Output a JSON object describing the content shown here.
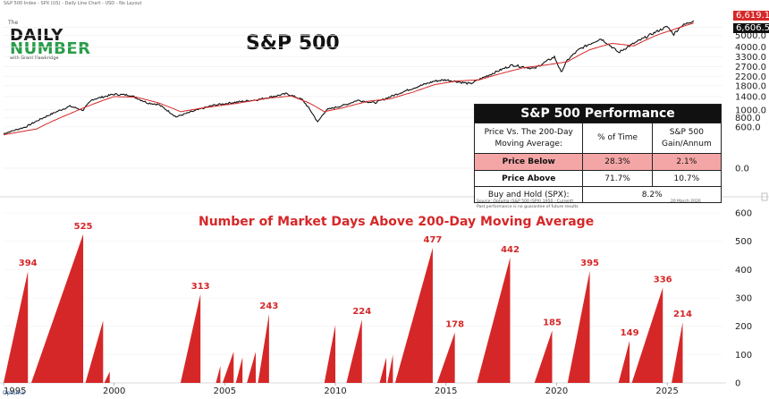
{
  "header": {
    "caption": "S&P 500 Index - SPX (US) - Daily Line Chart - USD - No Layout"
  },
  "logo": {
    "the": "The",
    "daily": "DAILY",
    "number": "NUMBER",
    "sub": "with Grant Hawkridge"
  },
  "chart_data": [
    {
      "type": "line",
      "title": "S&P 500",
      "y_scale": "log",
      "ylim": [
        -100,
        6700
      ],
      "ytick_labels": [
        "6,619.1",
        "6,606.5",
        "5800.0",
        "5000.0",
        "4000.0",
        "3300.0",
        "2700.0",
        "2200.0",
        "1800.0",
        "1400.0",
        "1000.0",
        "800.0",
        "600.0",
        "0.0"
      ],
      "last_value_tags": {
        "high": "6,619.1",
        "last": "6,606.5"
      },
      "series": [
        {
          "name": "S&P 500",
          "color": "#111111",
          "x": [
            1995.0,
            1996.0,
            1997.0,
            1998.0,
            1998.6,
            1999.0,
            2000.0,
            2000.7,
            2001.5,
            2002.0,
            2002.8,
            2003.5,
            2004.5,
            2005.5,
            2006.5,
            2007.8,
            2008.5,
            2009.2,
            2009.6,
            2010.5,
            2011.0,
            2011.8,
            2012.5,
            2013.5,
            2014.5,
            2015.0,
            2016.1,
            2017.0,
            2018.0,
            2019.0,
            2019.9,
            2020.2,
            2020.5,
            2021.0,
            2022.0,
            2022.8,
            2023.5,
            2024.0,
            2025.0,
            2025.3,
            2025.6,
            2026.2
          ],
          "y": [
            470,
            600,
            850,
            1100,
            990,
            1300,
            1480,
            1450,
            1200,
            1150,
            820,
            950,
            1130,
            1220,
            1300,
            1500,
            1300,
            700,
            1000,
            1150,
            1280,
            1200,
            1400,
            1700,
            2000,
            2050,
            1880,
            2300,
            2800,
            2600,
            3300,
            2400,
            3100,
            3800,
            4700,
            3600,
            4300,
            4800,
            5900,
            5100,
            5900,
            6606
          ]
        },
        {
          "name": "200-Day Moving Average",
          "color": "#d62728",
          "x": [
            1995.0,
            1996.5,
            1998.0,
            1999.0,
            2000.0,
            2001.0,
            2002.0,
            2003.0,
            2004.0,
            2005.5,
            2007.0,
            2008.0,
            2008.8,
            2009.5,
            2010.3,
            2011.5,
            2012.5,
            2013.5,
            2014.5,
            2015.5,
            2016.5,
            2017.5,
            2018.5,
            2019.5,
            2020.5,
            2021.5,
            2022.5,
            2023.5,
            2024.5,
            2025.3,
            2026.2
          ],
          "y": [
            450,
            560,
            900,
            1150,
            1400,
            1380,
            1200,
            950,
            1050,
            1180,
            1350,
            1420,
            1200,
            950,
            1050,
            1250,
            1330,
            1550,
            1850,
            2000,
            2050,
            2350,
            2650,
            2800,
            3000,
            3800,
            4300,
            4100,
            5000,
            5600,
            6300
          ]
        }
      ]
    },
    {
      "type": "bar",
      "title": "Number of Market Days Above 200-Day Moving Average",
      "ylim": [
        0,
        600
      ],
      "ytick_labels": [
        "600",
        "500",
        "400",
        "300",
        "200",
        "100",
        "0"
      ],
      "xtick_labels": [
        "1995",
        "2000",
        "2005",
        "2010",
        "2015",
        "2020",
        "2025"
      ],
      "peak_labels": [
        {
          "x": 1996.1,
          "value": 394,
          "label": "394"
        },
        {
          "x": 1998.6,
          "value": 525,
          "label": "525"
        },
        {
          "x": 2003.9,
          "value": 313,
          "label": "313"
        },
        {
          "x": 2007.0,
          "value": 243,
          "label": "243"
        },
        {
          "x": 2011.2,
          "value": 224,
          "label": "224"
        },
        {
          "x": 2014.4,
          "value": 477,
          "label": "477"
        },
        {
          "x": 2015.4,
          "value": 178,
          "label": "178"
        },
        {
          "x": 2017.9,
          "value": 442,
          "label": "442"
        },
        {
          "x": 2019.8,
          "value": 185,
          "label": "185"
        },
        {
          "x": 2021.5,
          "value": 395,
          "label": "395"
        },
        {
          "x": 2023.3,
          "value": 149,
          "label": "149"
        },
        {
          "x": 2024.8,
          "value": 336,
          "label": "336"
        },
        {
          "x": 2025.7,
          "value": 214,
          "label": "214"
        }
      ],
      "runs": [
        {
          "start": 1995.0,
          "end": 1996.1,
          "peak": 394
        },
        {
          "start": 1996.25,
          "end": 1998.6,
          "peak": 525
        },
        {
          "start": 1998.7,
          "end": 1999.5,
          "peak": 220
        },
        {
          "start": 1999.55,
          "end": 1999.8,
          "peak": 40
        },
        {
          "start": 2003.0,
          "end": 2003.9,
          "peak": 313
        },
        {
          "start": 2004.6,
          "end": 2004.8,
          "peak": 60
        },
        {
          "start": 2004.9,
          "end": 2005.4,
          "peak": 110
        },
        {
          "start": 2005.5,
          "end": 2005.8,
          "peak": 90
        },
        {
          "start": 2006.0,
          "end": 2006.4,
          "peak": 110
        },
        {
          "start": 2006.5,
          "end": 2007.0,
          "peak": 243
        },
        {
          "start": 2009.5,
          "end": 2010.0,
          "peak": 205
        },
        {
          "start": 2010.5,
          "end": 2011.2,
          "peak": 224
        },
        {
          "start": 2012.0,
          "end": 2012.3,
          "peak": 90
        },
        {
          "start": 2012.35,
          "end": 2012.6,
          "peak": 100
        },
        {
          "start": 2012.7,
          "end": 2014.4,
          "peak": 477
        },
        {
          "start": 2014.6,
          "end": 2015.4,
          "peak": 178
        },
        {
          "start": 2016.4,
          "end": 2017.9,
          "peak": 442
        },
        {
          "start": 2019.0,
          "end": 2019.8,
          "peak": 185
        },
        {
          "start": 2020.5,
          "end": 2021.5,
          "peak": 395
        },
        {
          "start": 2022.8,
          "end": 2023.3,
          "peak": 149
        },
        {
          "start": 2023.4,
          "end": 2024.8,
          "peak": 336
        },
        {
          "start": 2025.2,
          "end": 2025.7,
          "peak": 214
        }
      ],
      "bar_color": "#d62728"
    }
  ],
  "table": {
    "title": "S&P 500 Performance",
    "col1_header": "Price Vs. The 200-Day Moving Average:",
    "col2_header": "% of Time",
    "col3_header": "S&P 500 Gain/Annum",
    "rows": [
      {
        "label": "Price Below",
        "pct": "28.3%",
        "gain": "2.1%"
      },
      {
        "label": "Price Above",
        "pct": "71.7%",
        "gain": "10.7%"
      }
    ],
    "buy_hold_label": "Buy and Hold (SPX):",
    "buy_hold_value": "8.2%"
  },
  "source_note": "Source: Optuma (S&P 500 (SPX) 1950 - Current)",
  "performance_note": "Past performance is no guarantee of future results",
  "date_note": "20 March 2026",
  "brand": "Optuma"
}
